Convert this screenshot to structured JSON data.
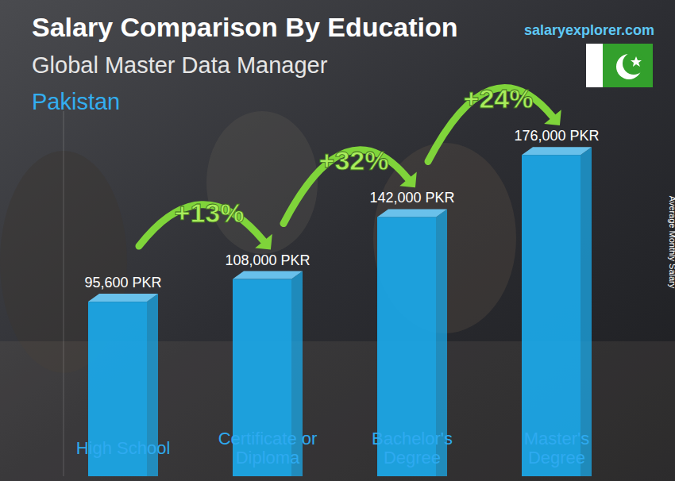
{
  "chart_data": {
    "type": "bar",
    "title": "Salary Comparison By Education",
    "subtitle": "Global Master Data Manager",
    "region": "Pakistan",
    "source": "salaryexplorer.com",
    "y_label": "Average Monthly Salary",
    "categories": [
      "High School",
      "Certificate or Diploma",
      "Bachelor's Degree",
      "Master's Degree"
    ],
    "values": [
      95600,
      108000,
      142000,
      176000
    ],
    "value_labels": [
      "95,600 PKR",
      "108,000 PKR",
      "142,000 PKR",
      "176,000 PKR"
    ],
    "annotations": [
      "+13%",
      "+32%",
      "+24%"
    ],
    "color": "#1ba9ea",
    "ylim": [
      0,
      200000
    ],
    "yticks": [],
    "data_labels": true,
    "tick_labels": "x",
    "grid": false
  }
}
